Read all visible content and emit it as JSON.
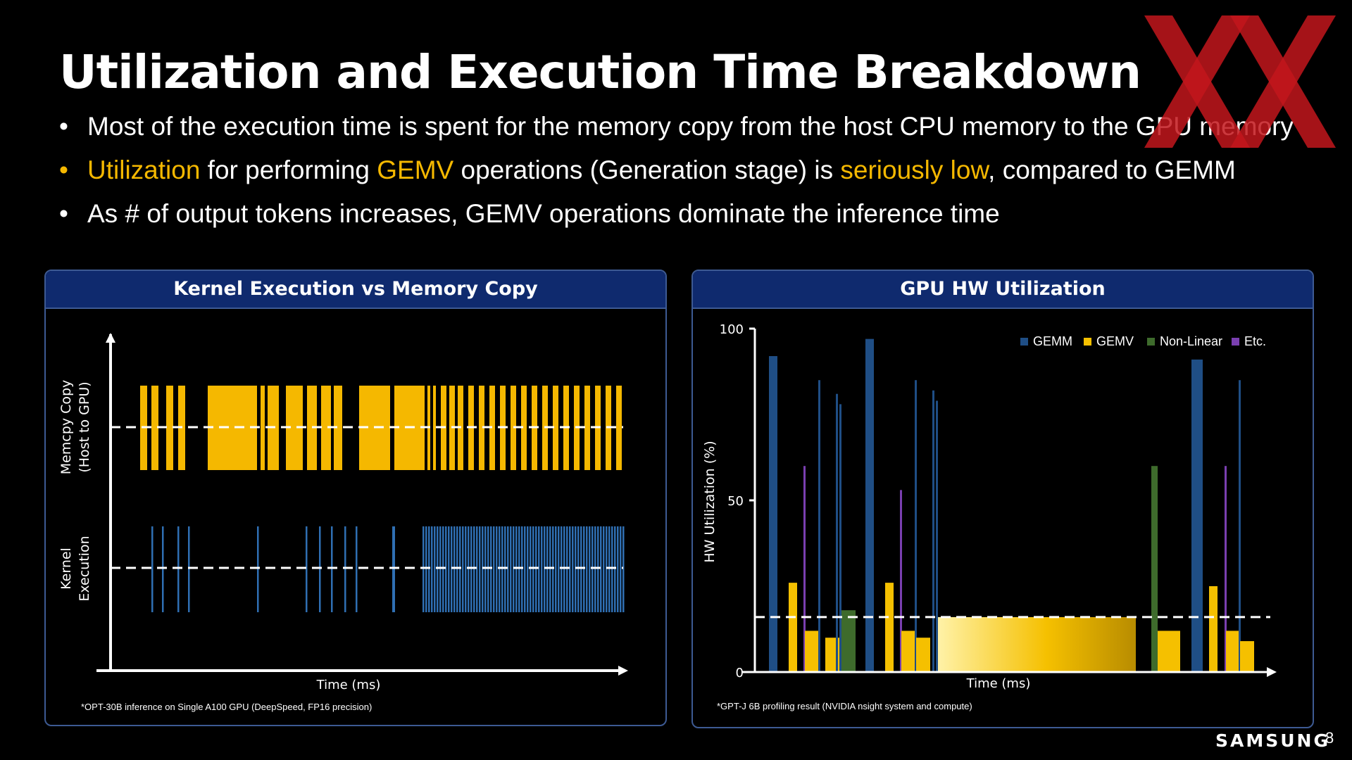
{
  "slide": {
    "title": "Utilization and Execution Time Breakdown",
    "bullets": [
      {
        "color": "#ffffff",
        "parts": [
          {
            "text": "Most of the execution time is spent for the memory copy from the host CPU memory to the GPU memory",
            "highlight": false
          }
        ]
      },
      {
        "color": "#f5b800",
        "parts": [
          {
            "text": "Utilization",
            "highlight": true
          },
          {
            "text": " for performing ",
            "highlight": false
          },
          {
            "text": "GEMV",
            "highlight": true
          },
          {
            "text": " operations (Generation stage) is ",
            "highlight": false
          },
          {
            "text": "seriously low",
            "highlight": true
          },
          {
            "text": ", compared to GEMM",
            "highlight": false
          }
        ]
      },
      {
        "color": "#ffffff",
        "parts": [
          {
            "text": "As # of output tokens increases, GEMV operations dominate the inference time",
            "highlight": false
          }
        ]
      }
    ],
    "brand": "SAMSUNG",
    "page_number": "8"
  },
  "colors": {
    "accent_yellow": "#f5b800",
    "kernel_blue": "#2f6fb3",
    "gemm": "#1f4e85",
    "gemv": "#f5c000",
    "nonlinear": "#3e6b2c",
    "etc": "#7a3fb0",
    "panel_header": "#0f2a6e"
  },
  "left_panel": {
    "header": "Kernel Execution vs Memory Copy",
    "ylabel_top_line1": "Memcpy Copy",
    "ylabel_top_line2": "(Host to GPU)",
    "ylabel_bottom_line1": "Kernel",
    "ylabel_bottom_line2": "Execution",
    "xlabel": "Time (ms)",
    "footnote": "*OPT-30B inference on Single A100 GPU (DeepSpeed, FP16 precision)"
  },
  "right_panel": {
    "header": "GPU HW Utilization",
    "footnote": "*GPT-J 6B profiling result (NVIDIA nsight system and compute)"
  },
  "chart_data": {
    "type": "bar",
    "xlabel": "Time (ms)",
    "ylabel": "HW Utilization (%)",
    "ylim": [
      0,
      100
    ],
    "yticks": [
      0,
      50,
      100
    ],
    "legend": [
      "GEMM",
      "GEMV",
      "Non-Linear",
      "Etc."
    ],
    "legend_placement": "top-right",
    "reference_line": 16,
    "bars": [
      {
        "category": "GEMM",
        "value": 92
      },
      {
        "category": "GEMV",
        "value": 26
      },
      {
        "category": "Etc.",
        "value": 60
      },
      {
        "category": "GEMV",
        "value": 12
      },
      {
        "category": "GEMM",
        "value": 85
      },
      {
        "category": "GEMV",
        "value": 10
      },
      {
        "category": "GEMM",
        "value": 81
      },
      {
        "category": "GEMM",
        "value": 78
      },
      {
        "category": "Non-Linear",
        "value": 18
      },
      {
        "category": "GEMM",
        "value": 97
      },
      {
        "category": "GEMV",
        "value": 26
      },
      {
        "category": "Etc.",
        "value": 53
      },
      {
        "category": "GEMV",
        "value": 12
      },
      {
        "category": "GEMM",
        "value": 85
      },
      {
        "category": "GEMV",
        "value": 10
      },
      {
        "category": "GEMM",
        "value": 82
      },
      {
        "category": "GEMM",
        "value": 79
      },
      {
        "category": "GEMV",
        "value": 16
      },
      {
        "category": "Non-Linear",
        "value": 60
      },
      {
        "category": "GEMV",
        "value": 12
      },
      {
        "category": "GEMM",
        "value": 91
      },
      {
        "category": "GEMV",
        "value": 25
      },
      {
        "category": "Etc.",
        "value": 60
      },
      {
        "category": "GEMV",
        "value": 12
      },
      {
        "category": "GEMM",
        "value": 85
      },
      {
        "category": "GEMV",
        "value": 9
      }
    ]
  }
}
